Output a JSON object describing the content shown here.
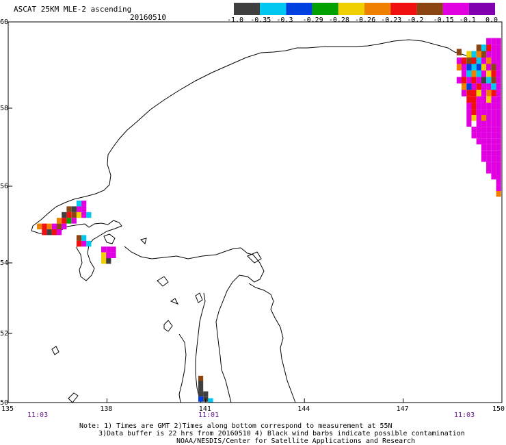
{
  "header": {
    "title": "ASCAT 25KM MLE-2 ascending",
    "date": "20160510"
  },
  "colorbar": {
    "colors": [
      "#404040",
      "#00c8f0",
      "#0040e0",
      "#00a000",
      "#f0d000",
      "#f08000",
      "#f01010",
      "#8b4513",
      "#e000e0",
      "#8000b0"
    ],
    "labels": [
      "-1.0",
      "-0.35",
      "-0.3",
      "-0.29",
      "-0.28",
      "-0.26",
      "-0.23",
      "-0.2",
      "-0.15",
      "-0.1",
      "0.0"
    ]
  },
  "axes": {
    "lat_labels": [
      "60",
      "58",
      "56",
      "54",
      "52",
      "50"
    ],
    "lon_labels": [
      "135",
      "138",
      "141",
      "144",
      "147",
      "150"
    ],
    "time_labels": [
      "11:03",
      "11:01",
      "11:03"
    ]
  },
  "notes": {
    "line1": "Note: 1) Times are GMT 2)Times along bottom correspond to measurement at 55N",
    "line2": "3)Data buffer is 22 hrs from 20160510 4) Black wind barbs indicate possible contamination",
    "line3": "NOAA/NESDIS/Center for Satellite Applications and Research"
  },
  "pixels": [
    {
      "lon": 135.95,
      "lat": 54.95,
      "c": "#f08000"
    },
    {
      "lon": 136.1,
      "lat": 54.95,
      "c": "#f01010"
    },
    {
      "lon": 136.25,
      "lat": 54.95,
      "c": "#f08000"
    },
    {
      "lon": 136.4,
      "lat": 54.95,
      "c": "#e000e0"
    },
    {
      "lon": 136.55,
      "lat": 54.95,
      "c": "#8b4513"
    },
    {
      "lon": 136.7,
      "lat": 54.95,
      "c": "#e000e0"
    },
    {
      "lon": 136.1,
      "lat": 54.8,
      "c": "#f01010"
    },
    {
      "lon": 136.25,
      "lat": 54.8,
      "c": "#404040"
    },
    {
      "lon": 136.4,
      "lat": 54.8,
      "c": "#f01010"
    },
    {
      "lon": 136.55,
      "lat": 54.8,
      "c": "#e000e0"
    },
    {
      "lon": 136.55,
      "lat": 55.1,
      "c": "#f08000"
    },
    {
      "lon": 136.7,
      "lat": 55.1,
      "c": "#f01010"
    },
    {
      "lon": 136.85,
      "lat": 55.1,
      "c": "#00a000"
    },
    {
      "lon": 137.0,
      "lat": 55.1,
      "c": "#e000e0"
    },
    {
      "lon": 136.7,
      "lat": 55.25,
      "c": "#404040"
    },
    {
      "lon": 136.85,
      "lat": 55.25,
      "c": "#f01010"
    },
    {
      "lon": 137.0,
      "lat": 55.25,
      "c": "#8b4513"
    },
    {
      "lon": 137.15,
      "lat": 55.25,
      "c": "#f0d000"
    },
    {
      "lon": 137.3,
      "lat": 55.25,
      "c": "#e000e0"
    },
    {
      "lon": 137.45,
      "lat": 55.25,
      "c": "#00c8f0"
    },
    {
      "lon": 136.85,
      "lat": 55.4,
      "c": "#8b4513"
    },
    {
      "lon": 137.0,
      "lat": 55.4,
      "c": "#404040"
    },
    {
      "lon": 137.15,
      "lat": 55.4,
      "c": "#e000e0"
    },
    {
      "lon": 137.3,
      "lat": 55.4,
      "c": "#e000e0"
    },
    {
      "lon": 137.15,
      "lat": 55.55,
      "c": "#00c8f0"
    },
    {
      "lon": 137.3,
      "lat": 55.55,
      "c": "#e000e0"
    },
    {
      "lon": 137.15,
      "lat": 54.65,
      "c": "#8b4513"
    },
    {
      "lon": 137.3,
      "lat": 54.65,
      "c": "#00c8f0"
    },
    {
      "lon": 137.15,
      "lat": 54.5,
      "c": "#f01010"
    },
    {
      "lon": 137.3,
      "lat": 54.5,
      "c": "#e000e0"
    },
    {
      "lon": 137.45,
      "lat": 54.5,
      "c": "#00c8f0"
    },
    {
      "lon": 137.9,
      "lat": 54.35,
      "c": "#e000e0"
    },
    {
      "lon": 138.05,
      "lat": 54.35,
      "c": "#e000e0"
    },
    {
      "lon": 138.2,
      "lat": 54.35,
      "c": "#e000e0"
    },
    {
      "lon": 137.9,
      "lat": 54.2,
      "c": "#f0d000"
    },
    {
      "lon": 138.05,
      "lat": 54.2,
      "c": "#e000e0"
    },
    {
      "lon": 138.2,
      "lat": 54.2,
      "c": "#e000e0"
    },
    {
      "lon": 137.9,
      "lat": 54.05,
      "c": "#f0d000"
    },
    {
      "lon": 138.05,
      "lat": 54.05,
      "c": "#404040"
    },
    {
      "lon": 140.85,
      "lat": 50.7,
      "c": "#8b4513"
    },
    {
      "lon": 140.85,
      "lat": 50.55,
      "c": "#404040"
    },
    {
      "lon": 140.85,
      "lat": 50.4,
      "c": "#404040"
    },
    {
      "lon": 140.85,
      "lat": 50.25,
      "c": "#404040"
    },
    {
      "lon": 141.0,
      "lat": 50.25,
      "c": "#404040"
    },
    {
      "lon": 140.85,
      "lat": 50.1,
      "c": "#0040e0"
    },
    {
      "lon": 141.0,
      "lat": 50.1,
      "c": "#404040"
    },
    {
      "lon": 141.15,
      "lat": 50.05,
      "c": "#00c8f0"
    },
    {
      "lon": 148.7,
      "lat": 59.3,
      "c": "#8b4513"
    },
    {
      "lon": 149.6,
      "lat": 59.55,
      "c": "#e000e0"
    },
    {
      "lon": 149.75,
      "lat": 59.55,
      "c": "#e000e0"
    },
    {
      "lon": 149.9,
      "lat": 59.55,
      "c": "#e000e0"
    },
    {
      "lon": 149.3,
      "lat": 59.4,
      "c": "#8b4513"
    },
    {
      "lon": 149.45,
      "lat": 59.4,
      "c": "#00c8f0"
    },
    {
      "lon": 149.6,
      "lat": 59.4,
      "c": "#f01010"
    },
    {
      "lon": 149.75,
      "lat": 59.4,
      "c": "#e000e0"
    },
    {
      "lon": 149.9,
      "lat": 59.4,
      "c": "#e000e0"
    },
    {
      "lon": 149.0,
      "lat": 59.25,
      "c": "#f0d000"
    },
    {
      "lon": 149.15,
      "lat": 59.25,
      "c": "#00c8f0"
    },
    {
      "lon": 149.3,
      "lat": 59.25,
      "c": "#f08000"
    },
    {
      "lon": 149.45,
      "lat": 59.25,
      "c": "#8b4513"
    },
    {
      "lon": 149.6,
      "lat": 59.25,
      "c": "#e000e0"
    },
    {
      "lon": 149.75,
      "lat": 59.25,
      "c": "#e000e0"
    },
    {
      "lon": 149.9,
      "lat": 59.25,
      "c": "#e000e0"
    },
    {
      "lon": 148.7,
      "lat": 59.1,
      "c": "#e000e0"
    },
    {
      "lon": 148.85,
      "lat": 59.1,
      "c": "#f01010"
    },
    {
      "lon": 149.0,
      "lat": 59.1,
      "c": "#8b4513"
    },
    {
      "lon": 149.15,
      "lat": 59.1,
      "c": "#f01010"
    },
    {
      "lon": 149.3,
      "lat": 59.1,
      "c": "#00c8f0"
    },
    {
      "lon": 149.45,
      "lat": 59.1,
      "c": "#e000e0"
    },
    {
      "lon": 149.6,
      "lat": 59.1,
      "c": "#f08000"
    },
    {
      "lon": 149.75,
      "lat": 59.1,
      "c": "#e000e0"
    },
    {
      "lon": 149.9,
      "lat": 59.1,
      "c": "#e000e0"
    },
    {
      "lon": 148.7,
      "lat": 58.95,
      "c": "#f08000"
    },
    {
      "lon": 148.85,
      "lat": 58.95,
      "c": "#e000e0"
    },
    {
      "lon": 149.0,
      "lat": 58.95,
      "c": "#0040e0"
    },
    {
      "lon": 149.15,
      "lat": 58.95,
      "c": "#00c8f0"
    },
    {
      "lon": 149.3,
      "lat": 58.95,
      "c": "#0040e0"
    },
    {
      "lon": 149.45,
      "lat": 58.95,
      "c": "#f0d000"
    },
    {
      "lon": 149.6,
      "lat": 58.95,
      "c": "#e000e0"
    },
    {
      "lon": 149.75,
      "lat": 58.95,
      "c": "#8b4513"
    },
    {
      "lon": 149.9,
      "lat": 58.95,
      "c": "#e000e0"
    },
    {
      "lon": 148.85,
      "lat": 58.8,
      "c": "#e000e0"
    },
    {
      "lon": 149.0,
      "lat": 58.8,
      "c": "#00c8f0"
    },
    {
      "lon": 149.15,
      "lat": 58.8,
      "c": "#f08000"
    },
    {
      "lon": 149.3,
      "lat": 58.8,
      "c": "#00c8f0"
    },
    {
      "lon": 149.45,
      "lat": 58.8,
      "c": "#e000e0"
    },
    {
      "lon": 149.6,
      "lat": 58.8,
      "c": "#f0d000"
    },
    {
      "lon": 149.75,
      "lat": 58.8,
      "c": "#f01010"
    },
    {
      "lon": 149.9,
      "lat": 58.8,
      "c": "#e000e0"
    },
    {
      "lon": 148.7,
      "lat": 58.65,
      "c": "#e000e0"
    },
    {
      "lon": 148.85,
      "lat": 58.65,
      "c": "#f01010"
    },
    {
      "lon": 149.0,
      "lat": 58.65,
      "c": "#e000e0"
    },
    {
      "lon": 149.15,
      "lat": 58.65,
      "c": "#f01010"
    },
    {
      "lon": 149.3,
      "lat": 58.65,
      "c": "#e000e0"
    },
    {
      "lon": 149.45,
      "lat": 58.65,
      "c": "#404040"
    },
    {
      "lon": 149.6,
      "lat": 58.65,
      "c": "#00c8f0"
    },
    {
      "lon": 149.75,
      "lat": 58.65,
      "c": "#8b4513"
    },
    {
      "lon": 149.9,
      "lat": 58.65,
      "c": "#e000e0"
    },
    {
      "lon": 148.85,
      "lat": 58.5,
      "c": "#f08000"
    },
    {
      "lon": 149.0,
      "lat": 58.5,
      "c": "#0040e0"
    },
    {
      "lon": 149.15,
      "lat": 58.5,
      "c": "#e000e0"
    },
    {
      "lon": 149.3,
      "lat": 58.5,
      "c": "#f01010"
    },
    {
      "lon": 149.45,
      "lat": 58.5,
      "c": "#e000e0"
    },
    {
      "lon": 149.6,
      "lat": 58.5,
      "c": "#e000e0"
    },
    {
      "lon": 149.75,
      "lat": 58.5,
      "c": "#00c8f0"
    },
    {
      "lon": 149.9,
      "lat": 58.5,
      "c": "#e000e0"
    },
    {
      "lon": 148.85,
      "lat": 58.35,
      "c": "#e000e0"
    },
    {
      "lon": 149.0,
      "lat": 58.35,
      "c": "#f01010"
    },
    {
      "lon": 149.15,
      "lat": 58.35,
      "c": "#f01010"
    },
    {
      "lon": 149.3,
      "lat": 58.35,
      "c": "#f0d000"
    },
    {
      "lon": 149.45,
      "lat": 58.35,
      "c": "#e000e0"
    },
    {
      "lon": 149.6,
      "lat": 58.35,
      "c": "#f08000"
    },
    {
      "lon": 149.75,
      "lat": 58.35,
      "c": "#f01010"
    },
    {
      "lon": 149.9,
      "lat": 58.35,
      "c": "#e000e0"
    },
    {
      "lon": 149.0,
      "lat": 58.2,
      "c": "#f01010"
    },
    {
      "lon": 149.15,
      "lat": 58.2,
      "c": "#f01010"
    },
    {
      "lon": 149.3,
      "lat": 58.2,
      "c": "#e000e0"
    },
    {
      "lon": 149.45,
      "lat": 58.2,
      "c": "#e000e0"
    },
    {
      "lon": 149.6,
      "lat": 58.2,
      "c": "#f0d000"
    },
    {
      "lon": 149.75,
      "lat": 58.2,
      "c": "#e000e0"
    },
    {
      "lon": 149.9,
      "lat": 58.2,
      "c": "#e000e0"
    },
    {
      "lon": 149.0,
      "lat": 58.05,
      "c": "#e000e0"
    },
    {
      "lon": 149.15,
      "lat": 58.05,
      "c": "#f01010"
    },
    {
      "lon": 149.3,
      "lat": 58.05,
      "c": "#e000e0"
    },
    {
      "lon": 149.45,
      "lat": 58.05,
      "c": "#e000e0"
    },
    {
      "lon": 149.6,
      "lat": 58.05,
      "c": "#e000e0"
    },
    {
      "lon": 149.75,
      "lat": 58.05,
      "c": "#e000e0"
    },
    {
      "lon": 149.9,
      "lat": 58.05,
      "c": "#e000e0"
    },
    {
      "lon": 149.0,
      "lat": 57.9,
      "c": "#e000e0"
    },
    {
      "lon": 149.15,
      "lat": 57.9,
      "c": "#f01010"
    },
    {
      "lon": 149.3,
      "lat": 57.9,
      "c": "#e000e0"
    },
    {
      "lon": 149.45,
      "lat": 57.9,
      "c": "#e000e0"
    },
    {
      "lon": 149.6,
      "lat": 57.9,
      "c": "#e000e0"
    },
    {
      "lon": 149.75,
      "lat": 57.9,
      "c": "#e000e0"
    },
    {
      "lon": 149.9,
      "lat": 57.9,
      "c": "#e000e0"
    },
    {
      "lon": 149.0,
      "lat": 57.75,
      "c": "#e000e0"
    },
    {
      "lon": 149.15,
      "lat": 57.75,
      "c": "#f0d000"
    },
    {
      "lon": 149.3,
      "lat": 57.75,
      "c": "#e000e0"
    },
    {
      "lon": 149.45,
      "lat": 57.75,
      "c": "#f08000"
    },
    {
      "lon": 149.6,
      "lat": 57.75,
      "c": "#e000e0"
    },
    {
      "lon": 149.75,
      "lat": 57.75,
      "c": "#e000e0"
    },
    {
      "lon": 149.9,
      "lat": 57.75,
      "c": "#e000e0"
    },
    {
      "lon": 149.0,
      "lat": 57.6,
      "c": "#e000e0"
    },
    {
      "lon": 149.3,
      "lat": 57.6,
      "c": "#e000e0"
    },
    {
      "lon": 149.45,
      "lat": 57.6,
      "c": "#e000e0"
    },
    {
      "lon": 149.6,
      "lat": 57.6,
      "c": "#e000e0"
    },
    {
      "lon": 149.75,
      "lat": 57.6,
      "c": "#e000e0"
    },
    {
      "lon": 149.9,
      "lat": 57.6,
      "c": "#e000e0"
    },
    {
      "lon": 149.15,
      "lat": 57.45,
      "c": "#e000e0"
    },
    {
      "lon": 149.3,
      "lat": 57.45,
      "c": "#e000e0"
    },
    {
      "lon": 149.45,
      "lat": 57.45,
      "c": "#e000e0"
    },
    {
      "lon": 149.6,
      "lat": 57.45,
      "c": "#e000e0"
    },
    {
      "lon": 149.75,
      "lat": 57.45,
      "c": "#e000e0"
    },
    {
      "lon": 149.9,
      "lat": 57.45,
      "c": "#e000e0"
    },
    {
      "lon": 149.15,
      "lat": 57.3,
      "c": "#e000e0"
    },
    {
      "lon": 149.3,
      "lat": 57.3,
      "c": "#e000e0"
    },
    {
      "lon": 149.45,
      "lat": 57.3,
      "c": "#e000e0"
    },
    {
      "lon": 149.6,
      "lat": 57.3,
      "c": "#e000e0"
    },
    {
      "lon": 149.75,
      "lat": 57.3,
      "c": "#e000e0"
    },
    {
      "lon": 149.9,
      "lat": 57.3,
      "c": "#e000e0"
    },
    {
      "lon": 149.3,
      "lat": 57.15,
      "c": "#e000e0"
    },
    {
      "lon": 149.45,
      "lat": 57.15,
      "c": "#e000e0"
    },
    {
      "lon": 149.6,
      "lat": 57.15,
      "c": "#e000e0"
    },
    {
      "lon": 149.75,
      "lat": 57.15,
      "c": "#e000e0"
    },
    {
      "lon": 149.9,
      "lat": 57.15,
      "c": "#e000e0"
    },
    {
      "lon": 149.45,
      "lat": 57.0,
      "c": "#e000e0"
    },
    {
      "lon": 149.6,
      "lat": 57.0,
      "c": "#e000e0"
    },
    {
      "lon": 149.75,
      "lat": 57.0,
      "c": "#e000e0"
    },
    {
      "lon": 149.9,
      "lat": 57.0,
      "c": "#e000e0"
    },
    {
      "lon": 149.45,
      "lat": 56.85,
      "c": "#e000e0"
    },
    {
      "lon": 149.6,
      "lat": 56.85,
      "c": "#e000e0"
    },
    {
      "lon": 149.75,
      "lat": 56.85,
      "c": "#e000e0"
    },
    {
      "lon": 149.9,
      "lat": 56.85,
      "c": "#e000e0"
    },
    {
      "lon": 149.45,
      "lat": 56.7,
      "c": "#e000e0"
    },
    {
      "lon": 149.6,
      "lat": 56.7,
      "c": "#e000e0"
    },
    {
      "lon": 149.75,
      "lat": 56.7,
      "c": "#e000e0"
    },
    {
      "lon": 149.9,
      "lat": 56.7,
      "c": "#e000e0"
    },
    {
      "lon": 149.6,
      "lat": 56.55,
      "c": "#e000e0"
    },
    {
      "lon": 149.75,
      "lat": 56.55,
      "c": "#e000e0"
    },
    {
      "lon": 149.9,
      "lat": 56.55,
      "c": "#e000e0"
    },
    {
      "lon": 149.6,
      "lat": 56.4,
      "c": "#e000e0"
    },
    {
      "lon": 149.75,
      "lat": 56.4,
      "c": "#e000e0"
    },
    {
      "lon": 149.9,
      "lat": 56.4,
      "c": "#e000e0"
    },
    {
      "lon": 149.75,
      "lat": 56.25,
      "c": "#e000e0"
    },
    {
      "lon": 149.9,
      "lat": 56.25,
      "c": "#e000e0"
    },
    {
      "lon": 149.9,
      "lat": 56.1,
      "c": "#e000e0"
    },
    {
      "lon": 149.9,
      "lat": 55.95,
      "c": "#e000e0"
    },
    {
      "lon": 149.9,
      "lat": 55.8,
      "c": "#f08000"
    }
  ]
}
